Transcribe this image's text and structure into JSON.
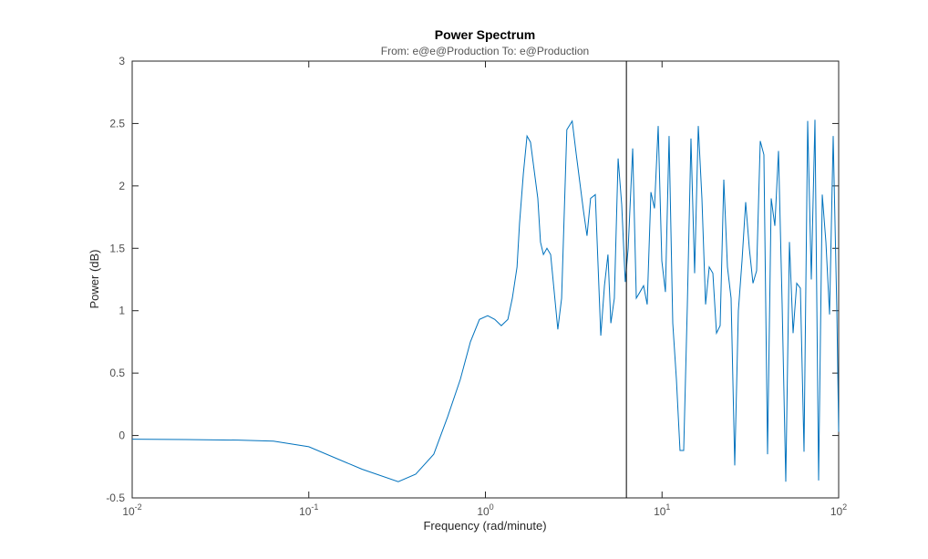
{
  "chart_data": {
    "type": "line",
    "title": "Power Spectrum",
    "subtitle": "From: e@e@Production  To: e@Production",
    "xlabel": "Frequency  (rad/minute)",
    "ylabel": "Power (dB)",
    "xscale": "log",
    "color": "#0072bd",
    "vline": 6.2832,
    "xlim": [
      0.01,
      100
    ],
    "xticks": [
      {
        "value": 0.01,
        "label": "10",
        "exponent": "-2"
      },
      {
        "value": 0.1,
        "label": "10",
        "exponent": "-1"
      },
      {
        "value": 1,
        "label": "10",
        "exponent": "0"
      },
      {
        "value": 10,
        "label": "10",
        "exponent": "1"
      },
      {
        "value": 100,
        "label": "10",
        "exponent": "2"
      }
    ],
    "ylim": [
      -0.5,
      3
    ],
    "yticks": [
      -0.5,
      0,
      0.5,
      1,
      1.5,
      2,
      2.5,
      3
    ],
    "x": [
      0.01,
      0.02,
      0.0398,
      0.0631,
      0.1,
      0.2,
      0.321,
      0.403,
      0.51,
      0.611,
      0.721,
      0.822,
      0.925,
      1.03,
      1.13,
      1.23,
      1.34,
      1.42,
      1.51,
      1.56,
      1.64,
      1.72,
      1.8,
      1.98,
      2.05,
      2.13,
      2.23,
      2.34,
      2.57,
      2.7,
      2.89,
      3.1,
      3.27,
      3.59,
      3.76,
      3.94,
      4.19,
      4.5,
      4.72,
      4.94,
      5.13,
      5.37,
      5.64,
      5.91,
      6.19,
      6.43,
      6.82,
      7.15,
      7.5,
      7.86,
      8.24,
      8.65,
      9.06,
      9.51,
      9.97,
      10.45,
      10.96,
      11.5,
      12.06,
      12.64,
      13.26,
      13.91,
      14.58,
      15.29,
      16.04,
      16.82,
      17.64,
      18.5,
      19.4,
      20.34,
      21.33,
      22.37,
      23.46,
      24.6,
      25.8,
      27.05,
      28.37,
      29.75,
      31.2,
      32.72,
      34.31,
      35.98,
      37.73,
      39.57,
      41.5,
      43.52,
      45.64,
      47.86,
      50.19,
      52.64,
      55.2,
      57.89,
      60.71,
      63.66,
      66.76,
      70.01,
      73.42,
      76.99,
      80.74,
      84.68,
      88.8,
      93.12,
      97.66,
      100
    ],
    "values": [
      -0.03,
      -0.032,
      -0.037,
      -0.045,
      -0.09,
      -0.27,
      -0.37,
      -0.31,
      -0.15,
      0.15,
      0.45,
      0.75,
      0.93,
      0.96,
      0.93,
      0.88,
      0.93,
      1.1,
      1.35,
      1.7,
      2.1,
      2.4,
      2.35,
      1.9,
      1.55,
      1.45,
      1.5,
      1.45,
      0.85,
      1.1,
      2.45,
      2.52,
      2.25,
      1.8,
      1.6,
      1.9,
      1.93,
      0.8,
      1.2,
      1.45,
      0.9,
      1.1,
      2.22,
      1.85,
      1.23,
      1.5,
      2.3,
      1.1,
      1.15,
      1.2,
      1.05,
      1.95,
      1.82,
      2.48,
      1.4,
      1.15,
      2.4,
      0.9,
      0.45,
      -0.12,
      -0.12,
      1.05,
      2.38,
      1.3,
      2.48,
      1.9,
      1.05,
      1.35,
      1.3,
      0.82,
      0.88,
      2.05,
      1.35,
      1.1,
      -0.24,
      1.0,
      1.4,
      1.87,
      1.5,
      1.22,
      1.32,
      2.36,
      2.25,
      -0.15,
      1.9,
      1.68,
      2.28,
      1.05,
      -0.37,
      1.55,
      0.82,
      1.22,
      1.18,
      -0.13,
      2.52,
      1.25,
      2.53,
      -0.36,
      1.93,
      1.55,
      0.97,
      2.4,
      1.0,
      0.03
    ]
  }
}
